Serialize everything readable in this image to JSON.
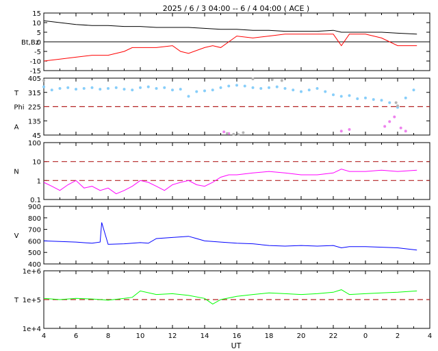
{
  "header": {
    "title": "2025 /  6 /  3   04:00 -- 6 /  4   04:00 ( ACE )"
  },
  "x_axis": {
    "label": "UT",
    "ticks": [
      "4",
      "6",
      "8",
      "10",
      "12",
      "14",
      "16",
      "18",
      "20",
      "22",
      "0",
      "2",
      "4"
    ]
  },
  "colors": {
    "bt": "#000000",
    "bz": "#ff0000",
    "theta": "#87cefa",
    "phi": "#ee82ee",
    "gray": "#b4b4b4",
    "density": "#ff00ff",
    "velocity": "#0000ff",
    "temperature": "#00ff00",
    "ref_line": "#b22222"
  },
  "chart_data": [
    {
      "type": "line",
      "panel": "magnetic-field",
      "ylabel": "Bt,Bz",
      "ylim": [
        -15,
        15
      ],
      "yticks": [
        "15",
        "10",
        "5",
        "0",
        "-5",
        "-10",
        "-15"
      ],
      "zero_line": 0,
      "series": [
        {
          "name": "Bt",
          "color": "#000000",
          "x": [
            4,
            5,
            6,
            7,
            8,
            9,
            10,
            11,
            12,
            13,
            14,
            15,
            16,
            17,
            18,
            19,
            20,
            21,
            22,
            22.5,
            23,
            24,
            25,
            26,
            27.2
          ],
          "y": [
            11,
            10,
            9,
            8.5,
            8.5,
            8,
            8,
            7.5,
            7.5,
            7.5,
            7,
            6.5,
            6.5,
            6,
            6,
            5.5,
            5.5,
            5.5,
            6,
            5,
            5,
            5,
            5,
            4.5,
            4
          ]
        },
        {
          "name": "Bz",
          "color": "#ff0000",
          "x": [
            4,
            5,
            6,
            7,
            8,
            9,
            9.5,
            10,
            11,
            12,
            12.5,
            13,
            14,
            14.5,
            15,
            15.5,
            16,
            17,
            18,
            19,
            20,
            21,
            22,
            22.5,
            23,
            24,
            25,
            26,
            27.2
          ],
          "y": [
            -10,
            -9,
            -8,
            -7,
            -7,
            -5,
            -3,
            -3,
            -3,
            -2,
            -5,
            -6,
            -3,
            -2,
            -3,
            0,
            3,
            2,
            3,
            4,
            4,
            4,
            4,
            -2,
            4,
            4,
            2,
            -2,
            -2
          ]
        }
      ]
    },
    {
      "type": "scatter",
      "panel": "field-direction",
      "ylabel_top": "T",
      "ylabel_mid": "Phi",
      "ylabel_bottom": "A",
      "ylim": [
        45,
        405
      ],
      "yticks": [
        "405",
        "315",
        "225",
        "135",
        "45"
      ],
      "reference_line": 225,
      "series": [
        {
          "name": "theta",
          "color": "#87cefa",
          "x": [
            4,
            4.5,
            5,
            5.5,
            6,
            6.5,
            7,
            7.5,
            8,
            8.5,
            9,
            9.5,
            10,
            10.5,
            11,
            11.5,
            12,
            12.5,
            13,
            13.5,
            14,
            14.5,
            15,
            15.5,
            16,
            16.5,
            17,
            17.5,
            18,
            18.5,
            19,
            19.5,
            20,
            20.5,
            21,
            21.5,
            22,
            22.5,
            23,
            23.5,
            24,
            24.5,
            25,
            25.5,
            26,
            26.5,
            27
          ],
          "y": [
            350,
            330,
            340,
            345,
            335,
            340,
            345,
            335,
            340,
            345,
            335,
            330,
            345,
            350,
            340,
            345,
            330,
            335,
            290,
            320,
            325,
            330,
            345,
            355,
            360,
            355,
            345,
            340,
            345,
            350,
            340,
            330,
            320,
            330,
            340,
            320,
            300,
            290,
            295,
            275,
            280,
            270,
            265,
            250,
            220,
            280,
            330
          ]
        },
        {
          "name": "phi",
          "color": "#ee82ee",
          "x": [
            15.2,
            15.5,
            22.5,
            23.0,
            25.2,
            25.5,
            25.8,
            26.2,
            26.5
          ],
          "y": [
            65,
            55,
            70,
            80,
            100,
            130,
            160,
            90,
            70
          ]
        },
        {
          "name": "phi-gray",
          "color": "#b4b4b4",
          "x": [
            4,
            15.4,
            15.8,
            16.1,
            16.4,
            17.0,
            18.2,
            18.8,
            25.9,
            26.0
          ],
          "y": [
            390,
            55,
            50,
            48,
            60,
            400,
            395,
            390,
            250,
            230
          ]
        }
      ]
    },
    {
      "type": "line",
      "panel": "density",
      "ylabel": "N",
      "scale": "log",
      "ylim": [
        0.1,
        100
      ],
      "yticks": [
        "100",
        "10",
        "1",
        "0.1"
      ],
      "reference_lines": [
        10,
        1
      ],
      "series": [
        {
          "name": "N",
          "color": "#ff00ff",
          "x": [
            4,
            4.5,
            5,
            5.5,
            6,
            6.5,
            7,
            7.5,
            8,
            8.5,
            9,
            9.5,
            10,
            10.5,
            11,
            11.5,
            12,
            12.5,
            13,
            13.5,
            14,
            14.5,
            15,
            15.5,
            16,
            17,
            18,
            19,
            20,
            21,
            22,
            22.5,
            23,
            24,
            25,
            26,
            27.2
          ],
          "y": [
            0.8,
            0.5,
            0.3,
            0.6,
            1.0,
            0.4,
            0.5,
            0.3,
            0.4,
            0.2,
            0.3,
            0.5,
            1.0,
            0.8,
            0.5,
            0.3,
            0.6,
            0.8,
            1.0,
            0.6,
            0.5,
            0.8,
            1.5,
            2.0,
            2.0,
            2.5,
            3.0,
            2.5,
            2.0,
            2.0,
            2.5,
            4.0,
            3.0,
            3.0,
            3.5,
            3.0,
            3.5
          ]
        }
      ]
    },
    {
      "type": "line",
      "panel": "velocity",
      "ylabel": "V",
      "ylim": [
        400,
        900
      ],
      "yticks": [
        "900",
        "800",
        "700",
        "600",
        "500",
        "400"
      ],
      "series": [
        {
          "name": "V",
          "color": "#0000ff",
          "x": [
            4,
            5,
            6,
            7,
            7.5,
            7.6,
            8,
            9,
            10,
            10.5,
            11,
            12,
            13,
            13.5,
            14,
            15,
            16,
            17,
            18,
            19,
            20,
            21,
            22,
            22.5,
            23,
            24,
            25,
            26,
            27.2
          ],
          "y": [
            600,
            595,
            590,
            580,
            590,
            760,
            570,
            575,
            585,
            580,
            620,
            630,
            640,
            620,
            600,
            590,
            580,
            575,
            560,
            555,
            560,
            555,
            560,
            540,
            550,
            550,
            545,
            540,
            520
          ]
        }
      ]
    },
    {
      "type": "line",
      "panel": "temperature",
      "ylabel": "T",
      "scale": "log",
      "ylim": [
        10000,
        1000000
      ],
      "yticks": [
        "1e+6",
        "1e+5",
        "1e+4"
      ],
      "reference_line": 100000,
      "series": [
        {
          "name": "T",
          "color": "#00ff00",
          "x": [
            4,
            5,
            6,
            7,
            8,
            9,
            9.5,
            10,
            11,
            12,
            13,
            14,
            14.5,
            15,
            16,
            17,
            18,
            19,
            20,
            21,
            22,
            22.5,
            23,
            24,
            25,
            26,
            27.2
          ],
          "y": [
            110000,
            100000,
            110000,
            105000,
            95000,
            110000,
            120000,
            200000,
            150000,
            160000,
            140000,
            110000,
            70000,
            100000,
            130000,
            150000,
            170000,
            160000,
            150000,
            160000,
            180000,
            220000,
            150000,
            160000,
            170000,
            180000,
            200000
          ]
        }
      ]
    }
  ]
}
